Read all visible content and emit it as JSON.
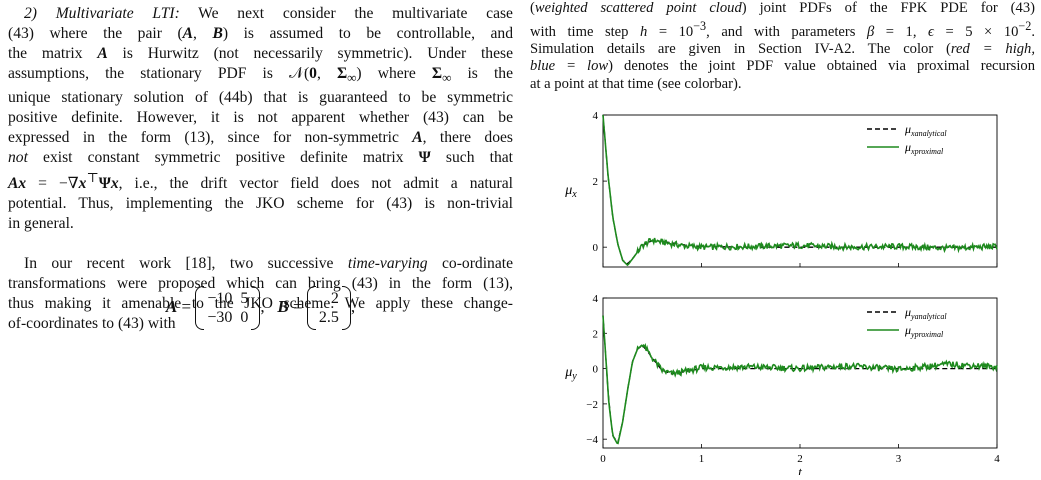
{
  "left_column": {
    "paragraph1_lines": [
      "2) Multivariate LTI: We next consider the multivariate case",
      "(43) where the pair (A, B) is assumed to be controllable, and",
      "the matrix A is Hurwitz (not necessarily symmetric). Under these",
      "assumptions, the stationary PDF is 𝒩(0, Σ∞) where Σ∞ is the",
      "unique stationary solution of (44b) that is guaranteed to be symmetric",
      "positive definite. However, it is not apparent whether (43) can be",
      "expressed in the form (13), since for non-symmetric A, there does",
      "not exist constant symmetric positive definite matrix Ψ such that",
      "Ax = −∇x⊤Ψx, i.e., the drift vector field does not admit a natural",
      "potential. Thus, implementing the JKO scheme for (43) is non-trivial",
      "in general."
    ],
    "paragraph2_lines": [
      "In our recent work [18], two successive time-varying co-ordinate",
      "transformations were proposed which can bring (43) in the form (13),",
      "thus making it amenable to the JKO scheme. We apply these change-",
      "of-coordinates to (43) with"
    ],
    "equation": {
      "A_label": "A =",
      "A_matrix": [
        [
          "−10",
          "5"
        ],
        [
          "−30",
          "0"
        ]
      ],
      "B_label": "B =",
      "B_matrix": [
        [
          "2"
        ],
        [
          "2.5"
        ]
      ],
      "separator": ",",
      "trailing": ","
    }
  },
  "right_column": {
    "caption_lines": [
      "(weighted scattered point cloud) joint PDFs of the FPK PDE for (43)",
      "with time step h = 10⁻³, and with parameters β = 1, ϵ = 5 × 10⁻².",
      "Simulation details are given in Section IV-A2. The color (red = high,",
      "blue = low) denotes the joint PDF value obtained via proximal recursion",
      "at a point at that time (see colorbar)."
    ]
  },
  "chart_data": [
    {
      "type": "line",
      "ylabel": "μ_x",
      "xlim": [
        0,
        4
      ],
      "ylim": [
        -0.6,
        4
      ],
      "yticks": [
        0,
        2,
        4
      ],
      "xticks": [
        0,
        1,
        2,
        3,
        4
      ],
      "xticklabels_shown": false,
      "legend": "top-right",
      "series": [
        {
          "name": "μ_x analytical",
          "style": "dashed",
          "color": "#000000",
          "x": [
            0,
            0.05,
            0.1,
            0.15,
            0.2,
            0.25,
            0.3,
            0.4,
            0.5,
            0.6,
            0.8,
            1.0,
            1.5,
            2.0,
            2.5,
            3.0,
            3.5,
            4.0
          ],
          "y": [
            4,
            2.2,
            0.9,
            0.1,
            -0.4,
            -0.5,
            -0.35,
            0.05,
            0.2,
            0.18,
            0.08,
            0.02,
            0,
            0,
            0,
            0,
            0,
            0
          ]
        },
        {
          "name": "μ_x proximal",
          "style": "solid",
          "color": "#1e8a1e",
          "x": [
            0,
            0.05,
            0.1,
            0.15,
            0.2,
            0.25,
            0.3,
            0.4,
            0.5,
            0.6,
            0.8,
            1.0,
            1.5,
            2.0,
            2.5,
            3.0,
            3.5,
            4.0
          ],
          "y": [
            4,
            2.2,
            0.9,
            0.1,
            -0.4,
            -0.55,
            -0.35,
            0.05,
            0.22,
            0.15,
            0.05,
            0.0,
            0.02,
            0.05,
            0.0,
            0.02,
            -0.03,
            0.02
          ]
        }
      ]
    },
    {
      "type": "line",
      "xlabel": "t",
      "ylabel": "μ_y",
      "xlim": [
        0,
        4
      ],
      "ylim": [
        -4.5,
        4
      ],
      "yticks": [
        -4,
        -2,
        0,
        2,
        4
      ],
      "xticks": [
        0,
        1,
        2,
        3,
        4
      ],
      "legend": "top-right",
      "series": [
        {
          "name": "μ_y analytical",
          "style": "dashed",
          "color": "#000000",
          "x": [
            0,
            0.03,
            0.06,
            0.1,
            0.15,
            0.2,
            0.25,
            0.3,
            0.35,
            0.4,
            0.45,
            0.5,
            0.6,
            0.7,
            0.8,
            1.0,
            1.5,
            2.0,
            2.5,
            3.0,
            3.5,
            4.0
          ],
          "y": [
            3,
            0.5,
            -2,
            -3.8,
            -4.2,
            -3,
            -1.2,
            0.4,
            1.1,
            1.3,
            1.0,
            0.6,
            -0.1,
            -0.3,
            -0.2,
            0,
            0,
            0,
            0,
            0,
            0,
            0
          ]
        },
        {
          "name": "μ_y proximal",
          "style": "solid",
          "color": "#1e8a1e",
          "x": [
            0,
            0.03,
            0.06,
            0.1,
            0.15,
            0.2,
            0.25,
            0.3,
            0.35,
            0.4,
            0.45,
            0.5,
            0.6,
            0.7,
            0.8,
            1.0,
            1.5,
            2.0,
            2.5,
            3.0,
            3.5,
            4.0
          ],
          "y": [
            3,
            0.5,
            -2,
            -3.8,
            -4.3,
            -3,
            -1.2,
            0.4,
            1.1,
            1.4,
            1.0,
            0.6,
            -0.1,
            -0.3,
            -0.2,
            0.05,
            0.1,
            0,
            0.15,
            -0.05,
            0.25,
            0.1
          ]
        }
      ]
    }
  ]
}
